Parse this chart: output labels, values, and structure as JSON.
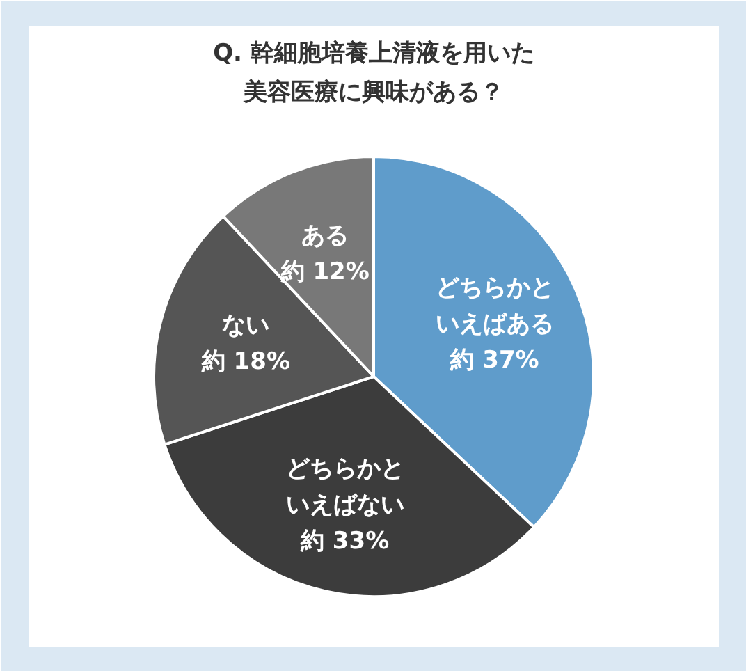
{
  "chart_data": {
    "type": "pie",
    "title": "Q. 幹細胞培養上清液を用いた美容医療に興味がある？",
    "categories": [
      "どちらかといえばある",
      "どちらかといえばない",
      "ない",
      "ある"
    ],
    "values": [
      37,
      33,
      18,
      12
    ],
    "colors": [
      "#5f9ccb",
      "#3c3c3c",
      "#555555",
      "#787878"
    ],
    "value_labels": [
      "約 37%",
      "約 33%",
      "約 18%",
      "約 12%"
    ]
  }
}
